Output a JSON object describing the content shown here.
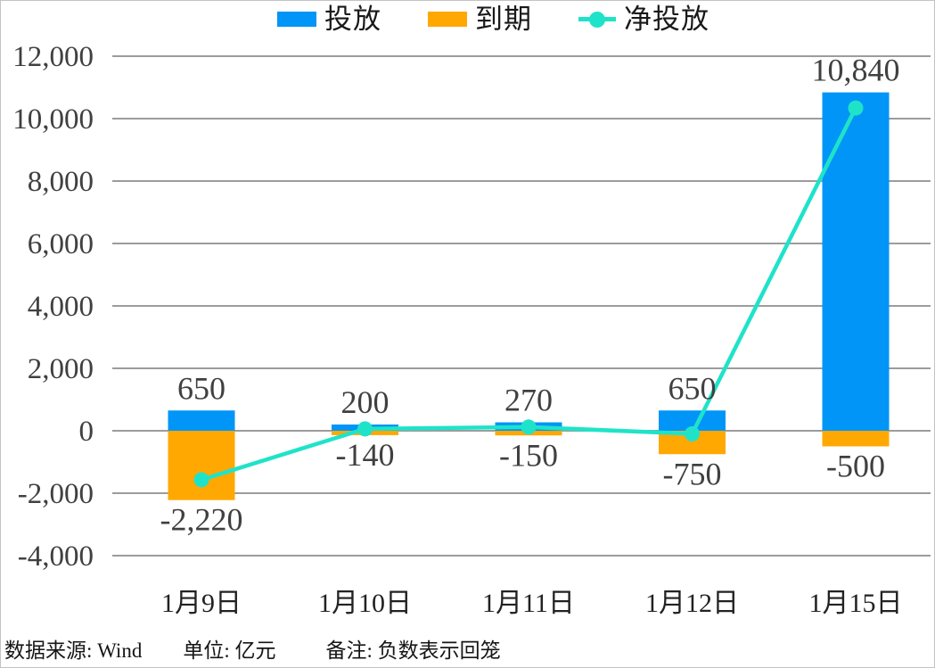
{
  "legend": {
    "items": [
      {
        "label": "投放",
        "type": "bar",
        "color": "#0095F7"
      },
      {
        "label": "到期",
        "type": "bar",
        "color": "#FFA802"
      },
      {
        "label": "净投放",
        "type": "line",
        "color": "#1FE3C9"
      }
    ]
  },
  "footer": {
    "source_label": "数据来源: Wind",
    "unit_label": "单位: 亿元",
    "note_label": "备注: 负数表示回笼"
  },
  "chart_data": {
    "type": "bar",
    "subtype": "bar-line-combo",
    "categories": [
      "1月9日",
      "1月10日",
      "1月11日",
      "1月12日",
      "1月15日"
    ],
    "series": [
      {
        "name": "投放",
        "type": "bar",
        "color": "#0095F7",
        "values": [
          650,
          200,
          270,
          650,
          10840
        ],
        "labels": [
          "650",
          "200",
          "270",
          "650",
          "10,840"
        ]
      },
      {
        "name": "到期",
        "type": "bar",
        "color": "#FFA802",
        "values": [
          -2220,
          -140,
          -150,
          -750,
          -500
        ],
        "labels": [
          "-2,220",
          "-140",
          "-150",
          "-750",
          "-500"
        ]
      },
      {
        "name": "净投放",
        "type": "line",
        "color": "#1FE3C9",
        "values": [
          -1570,
          60,
          120,
          -100,
          10340
        ]
      }
    ],
    "ylim": [
      -4000,
      12000
    ],
    "ytick_step": 2000,
    "ytick_labels": [
      "12,000",
      "10,000",
      "8,000",
      "6,000",
      "4,000",
      "2,000",
      "0",
      "-2,000",
      "-4,000"
    ],
    "grid": true,
    "gridline_color": "#9C9C9C",
    "axis_text_color": "#404040",
    "legend_position": "top",
    "unit": "亿元"
  }
}
